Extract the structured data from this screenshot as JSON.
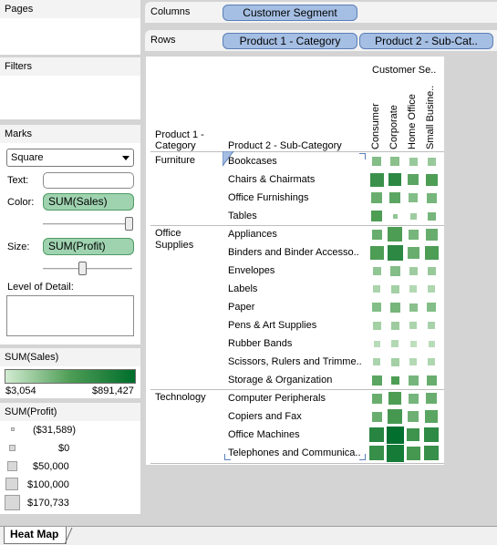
{
  "sidebar": {
    "pages_title": "Pages",
    "filters_title": "Filters",
    "marks": {
      "title": "Marks",
      "mark_type": "Square",
      "text_label": "Text:",
      "color_label": "Color:",
      "color_field": "SUM(Sales)",
      "size_label": "Size:",
      "size_field": "SUM(Profit)",
      "detail_label": "Level of Detail:"
    },
    "sales_legend": {
      "title": "SUM(Sales)",
      "min": "$3,054",
      "max": "$891,427"
    },
    "profit_legend": {
      "title": "SUM(Profit)",
      "items": [
        "($31,589)",
        "$0",
        "$50,000",
        "$100,000",
        "$170,733"
      ]
    }
  },
  "shelves": {
    "columns_label": "Columns",
    "columns_pill": "Customer Segment",
    "rows_label": "Rows",
    "rows_pills": [
      "Product 1 - Category",
      "Product 2 - Sub-Cat.."
    ]
  },
  "view": {
    "col_group_header": "Customer Se..",
    "row_header_1": "Product 1 - Category",
    "row_header_2": "Product 2 - Sub-Category",
    "segments": [
      "Consumer",
      "Corporate",
      "Home Office",
      "Small Busine.."
    ],
    "categories": [
      "Furniture",
      "Office Supplies",
      "Technology"
    ],
    "rows": [
      {
        "cat": 0,
        "label": "Bookcases",
        "cells": [
          [
            0.3,
            0.45
          ],
          [
            0.28,
            0.45
          ],
          [
            0.22,
            0.4
          ],
          [
            0.22,
            0.42
          ]
        ]
      },
      {
        "cat": 0,
        "label": "Chairs & Chairmats",
        "cells": [
          [
            0.62,
            0.85
          ],
          [
            0.72,
            0.78
          ],
          [
            0.45,
            0.62
          ],
          [
            0.5,
            0.68
          ]
        ]
      },
      {
        "cat": 0,
        "label": "Office Furnishings",
        "cells": [
          [
            0.4,
            0.6
          ],
          [
            0.45,
            0.62
          ],
          [
            0.3,
            0.48
          ],
          [
            0.35,
            0.55
          ]
        ]
      },
      {
        "cat": 0,
        "label": "Tables",
        "cells": [
          [
            0.5,
            0.62
          ],
          [
            0.25,
            0.1
          ],
          [
            0.2,
            0.25
          ],
          [
            0.35,
            0.4
          ]
        ]
      },
      {
        "cat": 1,
        "label": "Appliances",
        "cells": [
          [
            0.4,
            0.55
          ],
          [
            0.5,
            0.95
          ],
          [
            0.35,
            0.55
          ],
          [
            0.4,
            0.7
          ]
        ]
      },
      {
        "cat": 1,
        "label": "Binders and Binder Accesso..",
        "cells": [
          [
            0.5,
            0.85
          ],
          [
            0.72,
            1.0
          ],
          [
            0.4,
            0.72
          ],
          [
            0.5,
            0.88
          ]
        ]
      },
      {
        "cat": 1,
        "label": "Envelopes",
        "cells": [
          [
            0.25,
            0.4
          ],
          [
            0.3,
            0.5
          ],
          [
            0.2,
            0.38
          ],
          [
            0.22,
            0.42
          ]
        ]
      },
      {
        "cat": 1,
        "label": "Labels",
        "cells": [
          [
            0.15,
            0.3
          ],
          [
            0.18,
            0.35
          ],
          [
            0.12,
            0.3
          ],
          [
            0.14,
            0.3
          ]
        ]
      },
      {
        "cat": 1,
        "label": "Paper",
        "cells": [
          [
            0.3,
            0.45
          ],
          [
            0.35,
            0.5
          ],
          [
            0.28,
            0.42
          ],
          [
            0.3,
            0.46
          ]
        ]
      },
      {
        "cat": 1,
        "label": "Pens & Art Supplies",
        "cells": [
          [
            0.18,
            0.35
          ],
          [
            0.2,
            0.4
          ],
          [
            0.15,
            0.32
          ],
          [
            0.16,
            0.34
          ]
        ]
      },
      {
        "cat": 1,
        "label": "Rubber Bands",
        "cells": [
          [
            0.1,
            0.25
          ],
          [
            0.12,
            0.28
          ],
          [
            0.08,
            0.22
          ],
          [
            0.1,
            0.25
          ]
        ]
      },
      {
        "cat": 1,
        "label": "Scissors, Rulers and Trimme..",
        "cells": [
          [
            0.15,
            0.32
          ],
          [
            0.18,
            0.35
          ],
          [
            0.12,
            0.3
          ],
          [
            0.14,
            0.32
          ]
        ]
      },
      {
        "cat": 1,
        "label": "Storage & Organization",
        "cells": [
          [
            0.45,
            0.55
          ],
          [
            0.5,
            0.4
          ],
          [
            0.35,
            0.5
          ],
          [
            0.4,
            0.55
          ]
        ]
      },
      {
        "cat": 2,
        "label": "Computer Peripherals",
        "cells": [
          [
            0.4,
            0.55
          ],
          [
            0.5,
            0.75
          ],
          [
            0.35,
            0.55
          ],
          [
            0.4,
            0.6
          ]
        ]
      },
      {
        "cat": 2,
        "label": "Copiers and Fax",
        "cells": [
          [
            0.4,
            0.55
          ],
          [
            0.55,
            0.9
          ],
          [
            0.38,
            0.6
          ],
          [
            0.45,
            0.75
          ]
        ]
      },
      {
        "cat": 2,
        "label": "Office Machines",
        "cells": [
          [
            0.75,
            0.95
          ],
          [
            0.98,
            1.15
          ],
          [
            0.6,
            0.8
          ],
          [
            0.7,
            0.9
          ]
        ]
      },
      {
        "cat": 2,
        "label": "Telephones and Communica..",
        "cells": [
          [
            0.65,
            0.9
          ],
          [
            0.85,
            1.15
          ],
          [
            0.55,
            0.85
          ],
          [
            0.65,
            0.9
          ]
        ]
      }
    ]
  },
  "tabs": {
    "active": "Heat Map"
  },
  "colors": {
    "low": "#d3ecd2",
    "mid": "#4e9d55",
    "high": "#006d2c"
  }
}
